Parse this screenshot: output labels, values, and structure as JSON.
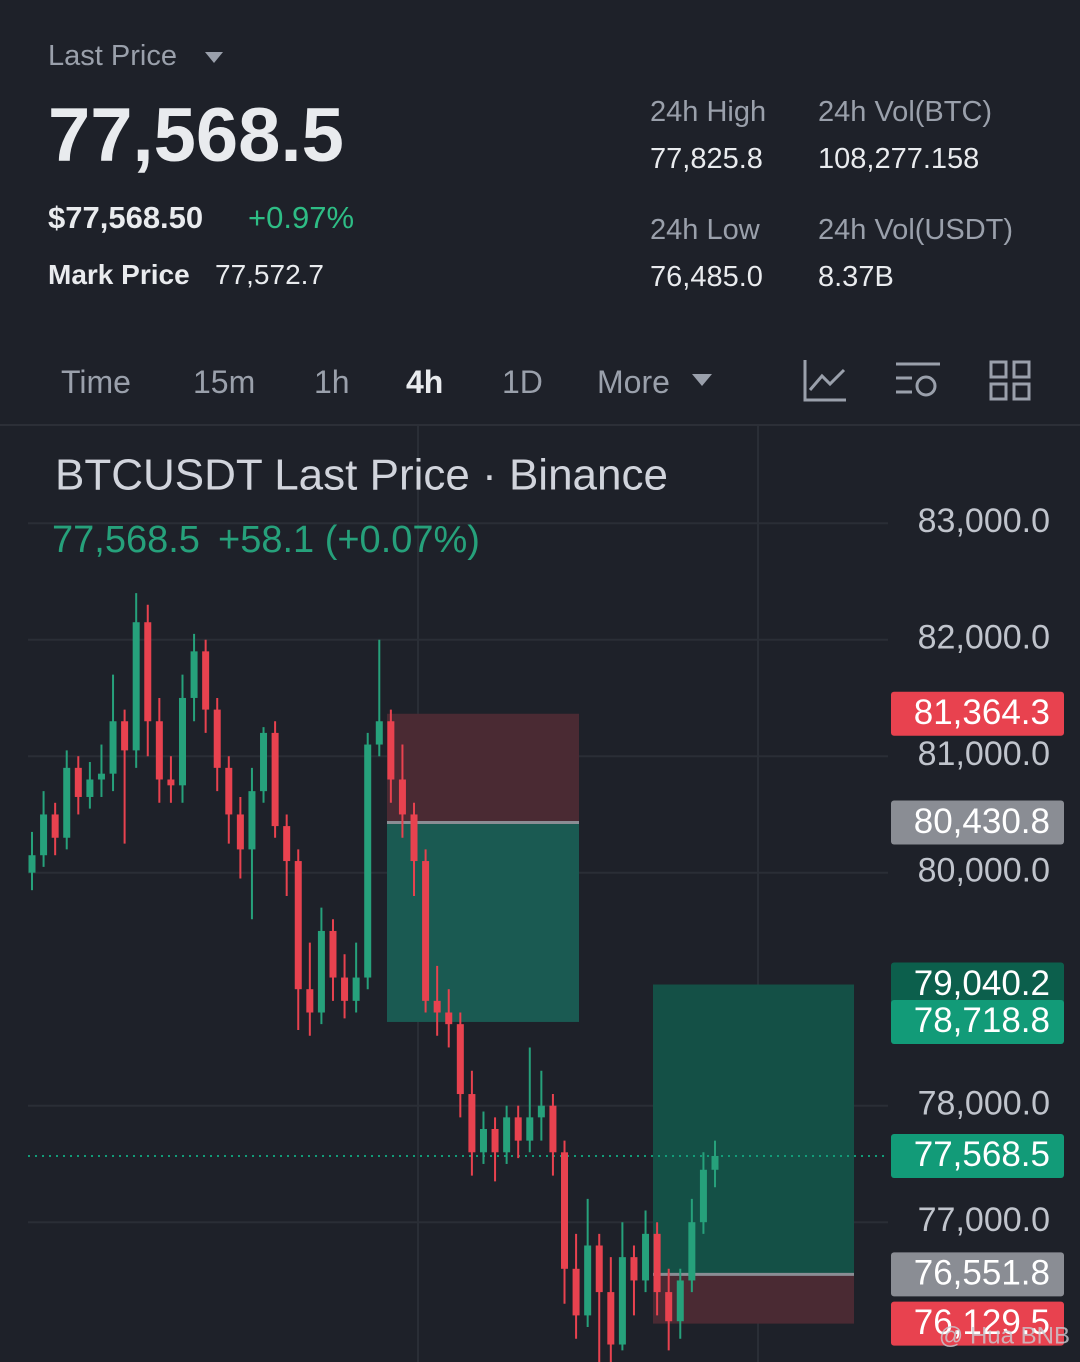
{
  "header": {
    "label": "Last Price",
    "price": "77,568.5",
    "usd_price": "$77,568.50",
    "change": "+0.97%",
    "mark_label": "Mark Price",
    "mark_value": "77,572.7"
  },
  "stats": [
    {
      "label": "24h High",
      "value": "77,825.8"
    },
    {
      "label": "24h Vol(BTC)",
      "value": "108,277.158"
    },
    {
      "label": "24h Low",
      "value": "76,485.0"
    },
    {
      "label": "24h Vol(USDT)",
      "value": "8.37B"
    }
  ],
  "tabs": [
    "Time",
    "15m",
    "1h",
    "4h",
    "1D",
    "More"
  ],
  "watermark": "@ Hua BNB",
  "chart_data": {
    "type": "candlestick",
    "title": "BTCUSDT Last Price · Binance",
    "subtitle_price": "77,568.5",
    "subtitle_change": "+58.1 (+0.07%)",
    "up_color": "#26a17b",
    "down_color": "#e8424f",
    "ylim": [
      75800,
      83800
    ],
    "yticks": [
      {
        "value": 77000,
        "label": "77,000.0"
      },
      {
        "value": 78000,
        "label": "78,000.0"
      },
      {
        "value": 80000,
        "label": "80,000.0"
      },
      {
        "value": 81000,
        "label": "81,000.0"
      },
      {
        "value": 82000,
        "label": "82,000.0"
      },
      {
        "value": 83000,
        "label": "83,000.0"
      }
    ],
    "grid": true,
    "price_tags": [
      {
        "value": 81364.3,
        "label": "81,364.3",
        "color": "#e8424f"
      },
      {
        "value": 80430.8,
        "label": "80,430.8",
        "color": "#8a8d94"
      },
      {
        "value": 79040.2,
        "label": "79,040.2",
        "color": "#0c5f4c"
      },
      {
        "value": 78718.8,
        "label": "78,718.8",
        "color": "#129b78"
      },
      {
        "value": 77568.5,
        "label": "77,568.5",
        "color": "#129b78"
      },
      {
        "value": 76551.8,
        "label": "76,551.8",
        "color": "#8a8d94"
      },
      {
        "value": 76129.5,
        "label": "76,129.5",
        "color": "#e8424f"
      }
    ],
    "open": [
      80000,
      80150,
      80500,
      80300,
      80900,
      80650,
      80800,
      80850,
      81300,
      81050,
      82150,
      81300,
      80800,
      80750,
      81500,
      81900,
      81400,
      80900,
      80500,
      80200,
      80700,
      81200,
      80400,
      80100,
      79000,
      78800,
      79500,
      79100,
      78900,
      79100,
      81100,
      81300,
      80800,
      80500,
      80100,
      78900,
      78800,
      78700,
      78100,
      77600,
      77800,
      77600,
      77900,
      77700,
      77900,
      78000,
      77600,
      76600,
      76200,
      76800,
      76400,
      75950,
      76700,
      76500,
      76900,
      76400,
      76150,
      76500,
      77000,
      77450
    ],
    "high": [
      80350,
      80700,
      80600,
      81050,
      81000,
      80950,
      81100,
      81700,
      81400,
      82400,
      82300,
      81500,
      81000,
      81700,
      82050,
      82000,
      81500,
      81000,
      80650,
      80900,
      81250,
      81300,
      80500,
      80200,
      79400,
      79700,
      79600,
      79300,
      79400,
      81200,
      82000,
      81400,
      81100,
      80600,
      80200,
      79200,
      79000,
      78800,
      78300,
      77950,
      77900,
      78000,
      78000,
      78500,
      78300,
      78100,
      77700,
      76900,
      77200,
      76900,
      76700,
      77000,
      76800,
      77100,
      77000,
      76600,
      76600,
      77200,
      77600,
      77700
    ],
    "low": [
      79850,
      80050,
      80150,
      80200,
      80500,
      80550,
      80650,
      80700,
      80250,
      80900,
      81000,
      80600,
      80600,
      80600,
      81300,
      81200,
      80700,
      80250,
      79950,
      79600,
      80600,
      80300,
      79800,
      78650,
      78600,
      78700,
      78900,
      78750,
      78800,
      79000,
      81000,
      80600,
      80300,
      79800,
      78800,
      78600,
      78500,
      77900,
      77400,
      77500,
      77350,
      77500,
      77550,
      77600,
      77700,
      77400,
      76300,
      76000,
      76100,
      75800,
      75700,
      75900,
      76200,
      76400,
      76200,
      75900,
      76000,
      76400,
      76900,
      77300
    ],
    "close": [
      80150,
      80500,
      80300,
      80900,
      80650,
      80800,
      80850,
      81300,
      81050,
      82150,
      81300,
      80800,
      80750,
      81500,
      81900,
      81400,
      80900,
      80500,
      80200,
      80700,
      81200,
      80400,
      80100,
      79000,
      78800,
      79500,
      79100,
      78900,
      79100,
      81100,
      81300,
      80800,
      80500,
      80100,
      78900,
      78800,
      78700,
      78100,
      77600,
      77800,
      77600,
      77900,
      77700,
      77900,
      78000,
      77600,
      76600,
      76200,
      76800,
      76400,
      75950,
      76700,
      76500,
      76900,
      76400,
      76150,
      76500,
      77000,
      77450,
      77568.5
    ]
  }
}
